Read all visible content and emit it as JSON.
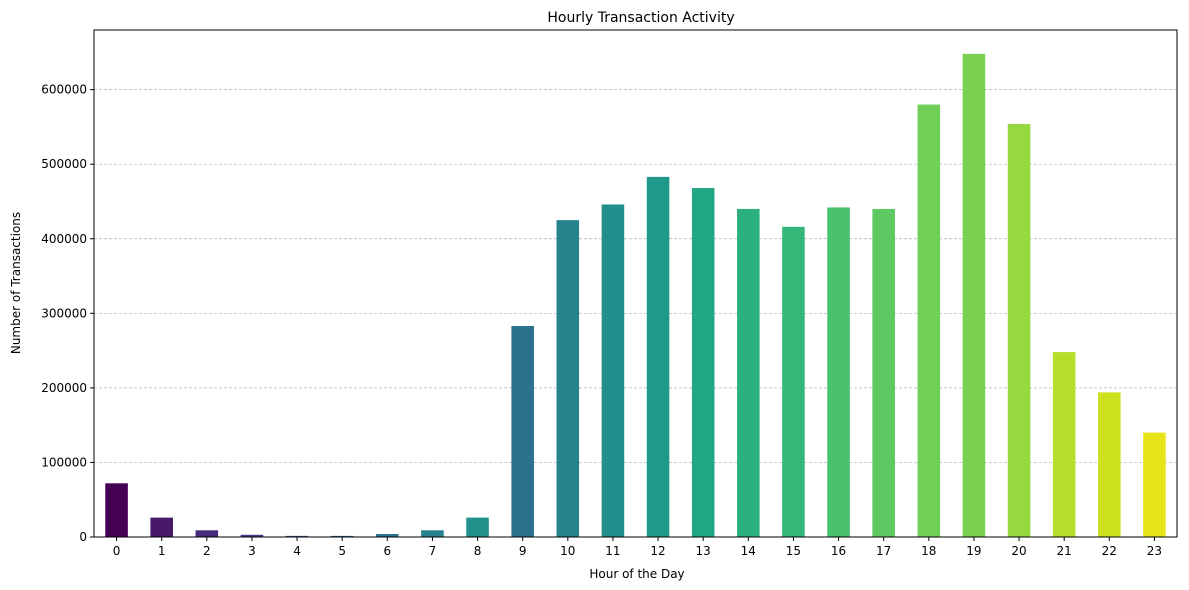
{
  "chart_data": {
    "type": "bar",
    "title": "Hourly Transaction Activity",
    "xlabel": "Hour of the Day",
    "ylabel": "Number of Transactions",
    "categories": [
      "0",
      "1",
      "2",
      "3",
      "4",
      "5",
      "6",
      "7",
      "8",
      "9",
      "10",
      "11",
      "12",
      "13",
      "14",
      "15",
      "16",
      "17",
      "18",
      "19",
      "20",
      "21",
      "22",
      "23"
    ],
    "values": [
      72000,
      26000,
      9000,
      3000,
      1500,
      1500,
      4000,
      9000,
      26000,
      283000,
      425000,
      446000,
      483000,
      468000,
      440000,
      416000,
      442000,
      440000,
      580000,
      648000,
      554000,
      248000,
      194000,
      140000
    ],
    "colors": [
      "#440154",
      "#48186a",
      "#472d7b",
      "#424086",
      "#3b528b",
      "#33638d",
      "#2c728e",
      "#26828e",
      "#21918c",
      "#2c718e",
      "#25838e",
      "#21908d",
      "#1f9a8a",
      "#22a785",
      "#2cb17e",
      "#35b779",
      "#4ac16d",
      "#5ec962",
      "#70cf57",
      "#7ad151",
      "#95d840",
      "#b5de2b",
      "#cde11d",
      "#e7e419"
    ],
    "ylim": [
      0,
      680000
    ],
    "yticks": [
      0,
      100000,
      200000,
      300000,
      400000,
      500000,
      600000
    ],
    "ytick_labels": [
      "0",
      "100000",
      "200000",
      "300000",
      "400000",
      "500000",
      "600000"
    ],
    "grid": "y-dashed"
  }
}
